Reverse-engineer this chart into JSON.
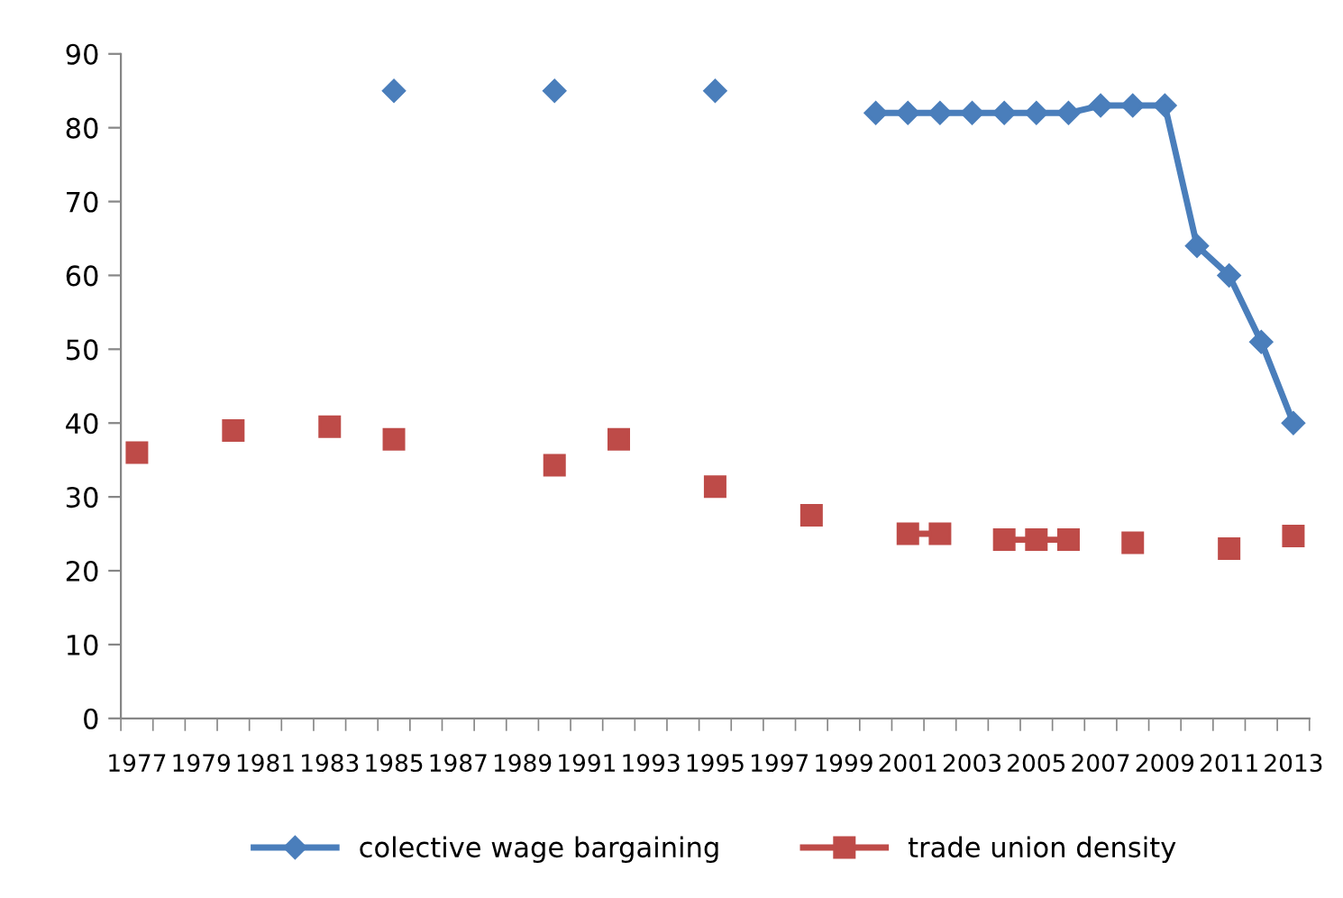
{
  "chart_data": {
    "type": "line",
    "categories": [
      "1977",
      null,
      "1979",
      null,
      "1981",
      null,
      "1983",
      null,
      "1985",
      null,
      "1987",
      null,
      "1989",
      null,
      "1991",
      null,
      "1993",
      null,
      "1995",
      null,
      "1997",
      null,
      "1999",
      null,
      "2001",
      null,
      "2003",
      null,
      "2005",
      null,
      "2007",
      null,
      "2009",
      null,
      "2011",
      null,
      "2013"
    ],
    "series": [
      {
        "name": "colective wage bargaining",
        "color": "#4a7ebb",
        "marker": "diamond",
        "values": [
          null,
          null,
          null,
          null,
          null,
          null,
          null,
          null,
          85,
          null,
          null,
          null,
          null,
          85,
          null,
          null,
          null,
          null,
          85,
          null,
          null,
          null,
          null,
          82,
          82,
          82,
          82,
          82,
          82,
          82,
          83,
          83,
          83,
          64,
          60,
          51,
          40
        ]
      },
      {
        "name": "trade union density",
        "color": "#be4b48",
        "marker": "square",
        "values": [
          36,
          null,
          null,
          39,
          null,
          null,
          39.5,
          null,
          37.8,
          null,
          null,
          null,
          null,
          34.3,
          null,
          37.8,
          null,
          null,
          31.4,
          null,
          null,
          27.5,
          null,
          null,
          25,
          25,
          null,
          24.2,
          24.2,
          24.2,
          null,
          23.8,
          null,
          null,
          23,
          null,
          24.7
        ]
      }
    ],
    "ylim": [
      0,
      90
    ],
    "yticks": [
      0,
      10,
      20,
      30,
      40,
      50,
      60,
      70,
      80,
      90
    ],
    "grid": false,
    "legend": "bottom",
    "line_style": "solid"
  }
}
